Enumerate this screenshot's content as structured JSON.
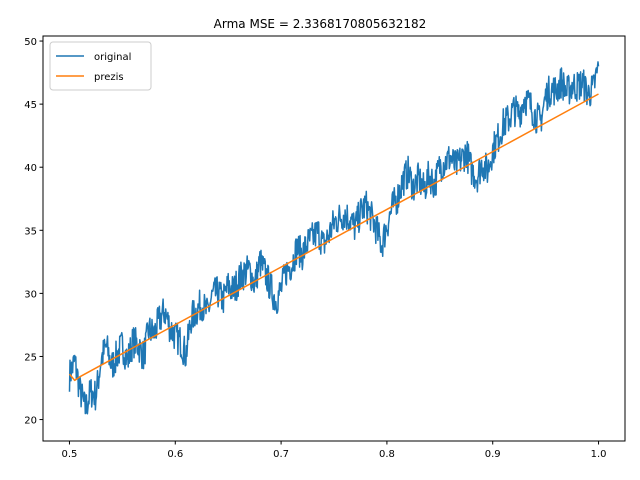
{
  "chart_data": {
    "type": "line",
    "title": "Arma MSE = 2.3368170805632182",
    "xlabel": "",
    "ylabel": "",
    "xlim": [
      0.475,
      1.025
    ],
    "ylim": [
      18.3,
      50.4
    ],
    "xticks": [
      0.5,
      0.6,
      0.7,
      0.8,
      0.9,
      1.0
    ],
    "xtick_labels": [
      "0.5",
      "0.6",
      "0.7",
      "0.8",
      "0.9",
      "1.0"
    ],
    "yticks": [
      20,
      25,
      30,
      35,
      40,
      45,
      50
    ],
    "ytick_labels": [
      "20",
      "25",
      "30",
      "35",
      "40",
      "45",
      "50"
    ],
    "grid": false,
    "legend_position": "top-left",
    "series": [
      {
        "name": "original",
        "color": "#1f77b4",
        "x": [
          0.5,
          0.505,
          0.51,
          0.515,
          0.52,
          0.525,
          0.53,
          0.535,
          0.54,
          0.545,
          0.55,
          0.555,
          0.56,
          0.565,
          0.57,
          0.575,
          0.58,
          0.585,
          0.59,
          0.595,
          0.6,
          0.605,
          0.61,
          0.615,
          0.62,
          0.625,
          0.63,
          0.635,
          0.64,
          0.645,
          0.65,
          0.655,
          0.66,
          0.665,
          0.67,
          0.675,
          0.68,
          0.685,
          0.69,
          0.695,
          0.7,
          0.705,
          0.71,
          0.715,
          0.72,
          0.725,
          0.73,
          0.735,
          0.74,
          0.745,
          0.75,
          0.755,
          0.76,
          0.765,
          0.77,
          0.775,
          0.78,
          0.785,
          0.79,
          0.795,
          0.8,
          0.805,
          0.81,
          0.815,
          0.82,
          0.825,
          0.83,
          0.835,
          0.84,
          0.845,
          0.85,
          0.855,
          0.86,
          0.865,
          0.87,
          0.875,
          0.88,
          0.885,
          0.89,
          0.895,
          0.9,
          0.905,
          0.91,
          0.915,
          0.92,
          0.925,
          0.93,
          0.935,
          0.94,
          0.945,
          0.95,
          0.955,
          0.96,
          0.965,
          0.97,
          0.975,
          0.98,
          0.985,
          0.99,
          0.995,
          1.0
        ],
        "y": [
          23.5,
          24.6,
          22.3,
          20.8,
          22.2,
          21.9,
          24.8,
          25.8,
          24.2,
          25.1,
          25.9,
          24.7,
          26.2,
          25.9,
          25.0,
          27.1,
          26.8,
          27.9,
          28.6,
          27.3,
          26.6,
          26.2,
          25.1,
          28.0,
          28.6,
          29.2,
          28.4,
          29.8,
          30.1,
          29.4,
          30.6,
          30.2,
          31.1,
          31.6,
          31.9,
          30.7,
          32.5,
          31.6,
          30.5,
          29.4,
          30.3,
          31.8,
          32.3,
          33.6,
          33.1,
          34.0,
          34.4,
          34.9,
          33.8,
          34.6,
          35.6,
          36.0,
          36.3,
          35.9,
          35.2,
          36.4,
          37.0,
          36.1,
          35.1,
          33.8,
          35.4,
          36.8,
          37.6,
          38.9,
          39.6,
          38.4,
          39.1,
          38.2,
          39.4,
          38.6,
          40.1,
          40.4,
          40.8,
          40.0,
          40.6,
          41.2,
          39.8,
          39.2,
          40.3,
          39.7,
          41.4,
          42.3,
          43.4,
          43.8,
          44.6,
          44.2,
          45.5,
          45.0,
          44.1,
          43.6,
          45.6,
          46.2,
          46.1,
          46.8,
          45.9,
          46.5,
          46.4,
          46.7,
          45.8,
          46.2,
          48.0
        ],
        "amplitude_note_hidden": null
      },
      {
        "name": "prezis",
        "color": "#ff7f0e",
        "x": [
          0.5,
          0.505,
          0.51,
          1.0
        ],
        "y": [
          23.6,
          23.1,
          23.4,
          45.8
        ]
      }
    ]
  }
}
